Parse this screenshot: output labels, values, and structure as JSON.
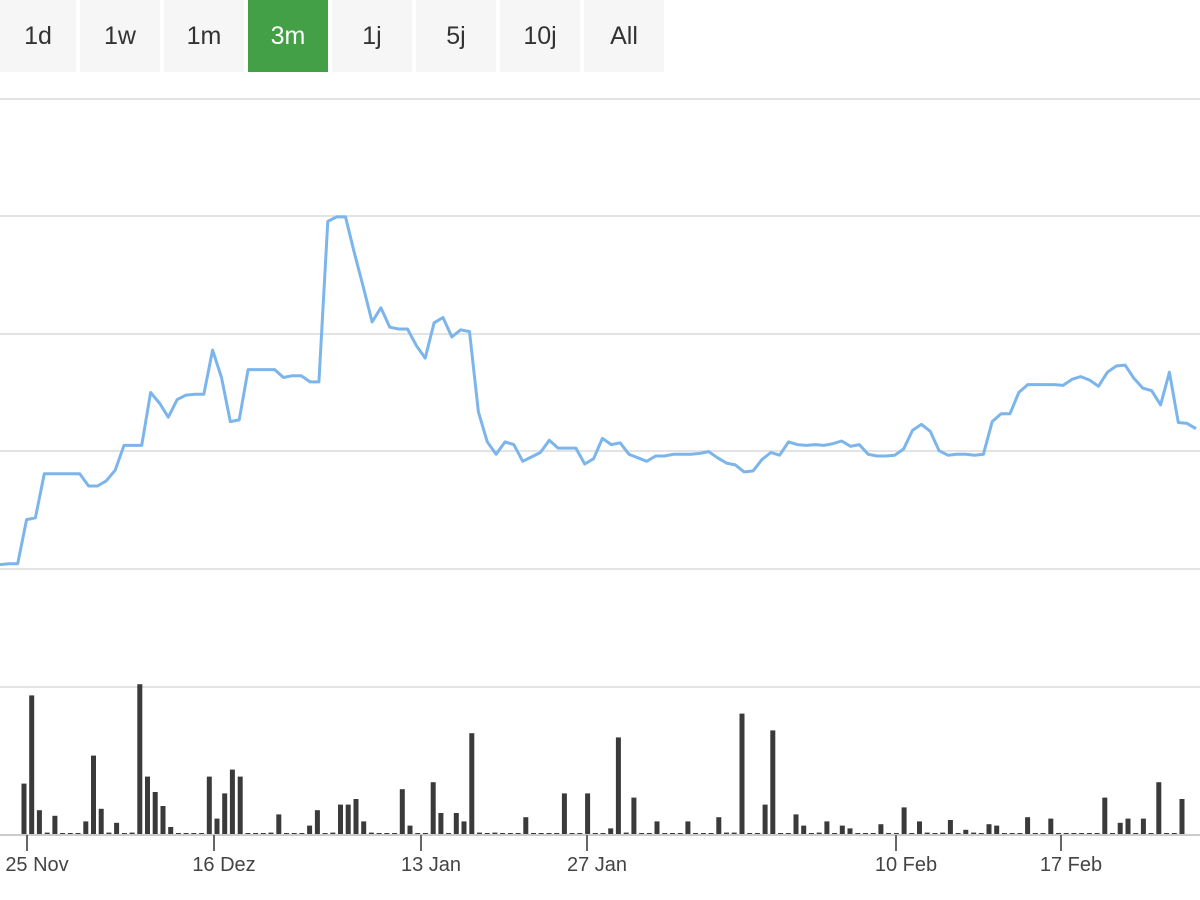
{
  "range_selector": {
    "buttons": [
      {
        "label": "1d"
      },
      {
        "label": "1w"
      },
      {
        "label": "1m"
      },
      {
        "label": "3m"
      },
      {
        "label": "1j"
      },
      {
        "label": "5j"
      },
      {
        "label": "10j"
      },
      {
        "label": "All"
      }
    ],
    "active": "3m"
  },
  "colors": {
    "line": "#7cb5ec",
    "volume": "#3a3a3a",
    "active_button": "#43a047",
    "button_bg": "#f6f6f6",
    "grid": "#e3e3e3"
  },
  "chart_data": {
    "type": "line",
    "grid": true,
    "x_ticks": [
      "25 Nov",
      "16 Dez",
      "13 Jan",
      "27 Jan",
      "10 Feb",
      "17 Feb"
    ],
    "ylim": [
      0,
      5
    ],
    "series": [
      {
        "values": [
          1.05,
          1.06,
          1.06,
          1.56,
          1.58,
          2.08,
          2.08,
          2.08,
          2.08,
          2.08,
          1.94,
          1.94,
          2.0,
          2.12,
          2.4,
          2.4,
          2.4,
          3.0,
          2.88,
          2.72,
          2.92,
          2.97,
          2.98,
          2.98,
          3.48,
          3.17,
          2.67,
          2.69,
          3.26,
          3.26,
          3.26,
          3.26,
          3.17,
          3.19,
          3.19,
          3.12,
          3.12,
          4.94,
          4.99,
          4.99,
          4.58,
          4.2,
          3.8,
          3.96,
          3.74,
          3.72,
          3.72,
          3.53,
          3.39,
          3.79,
          3.85,
          3.63,
          3.71,
          3.69,
          2.78,
          2.44,
          2.3,
          2.44,
          2.41,
          2.22,
          2.27,
          2.32,
          2.46,
          2.37,
          2.37,
          2.37,
          2.19,
          2.25,
          2.48,
          2.41,
          2.43,
          2.3,
          2.26,
          2.22,
          2.28,
          2.28,
          2.3,
          2.3,
          2.3,
          2.31,
          2.33,
          2.26,
          2.2,
          2.18,
          2.1,
          2.11,
          2.24,
          2.32,
          2.29,
          2.44,
          2.41,
          2.4,
          2.41,
          2.4,
          2.42,
          2.45,
          2.39,
          2.41,
          2.3,
          2.28,
          2.28,
          2.29,
          2.36,
          2.57,
          2.64,
          2.56,
          2.34,
          2.29,
          2.3,
          2.3,
          2.29,
          2.3,
          2.67,
          2.76,
          2.76,
          3.0,
          3.09,
          3.09,
          3.09,
          3.09,
          3.08,
          3.15,
          3.18,
          3.14,
          3.07,
          3.23,
          3.3,
          3.31,
          3.16,
          3.05,
          3.02,
          2.86,
          3.23,
          2.66,
          2.65,
          2.59
        ]
      }
    ],
    "volume": {
      "values": [
        0.36,
        0.99,
        0.17,
        0.01,
        0.13,
        0.0,
        0.0,
        0.0,
        0.09,
        0.56,
        0.18,
        0.01,
        0.08,
        0.0,
        0.01,
        1.07,
        0.41,
        0.3,
        0.2,
        0.05,
        0.0,
        0.0,
        0.0,
        0.0,
        0.41,
        0.11,
        0.29,
        0.46,
        0.41,
        0.0,
        0.0,
        0.0,
        0.01,
        0.14,
        0.0,
        0.0,
        0.0,
        0.06,
        0.17,
        0.0,
        0.01,
        0.21,
        0.21,
        0.25,
        0.09,
        0.01,
        0.0,
        0.0,
        0.0,
        0.32,
        0.06,
        0.0,
        0.0,
        0.37,
        0.15,
        0.0,
        0.15,
        0.09,
        0.72,
        0.01,
        0.0,
        0.01,
        0.0,
        0.0,
        0.0,
        0.12,
        0.0,
        0.0,
        0.0,
        0.0,
        0.29,
        0.0,
        0.0,
        0.29,
        0.0,
        0.0,
        0.04,
        0.69,
        0.01,
        0.26,
        0.0,
        0.0,
        0.09,
        0.0,
        0.0,
        0.0,
        0.09,
        0.0,
        0.0,
        0.0,
        0.12,
        0.01,
        0.01,
        0.86,
        0.0,
        0.0,
        0.21,
        0.74,
        0.0,
        0.0,
        0.14,
        0.06,
        0.0,
        0.01,
        0.09,
        0.0,
        0.06,
        0.04,
        0.0,
        0.0,
        0.0,
        0.07,
        0.0,
        0.0,
        0.19,
        0.0,
        0.09,
        0.01,
        0.0,
        0.01,
        0.1,
        0.0,
        0.03,
        0.01,
        0.0,
        0.07,
        0.06,
        0.0,
        0.0,
        0.0,
        0.12,
        0.0,
        0.0,
        0.11,
        0.0,
        0.0,
        0.0,
        0.0,
        0.0,
        0.0,
        0.26,
        0.0,
        0.08,
        0.11,
        0.0,
        0.11,
        0.0,
        0.37,
        0.0,
        0.0,
        0.25
      ]
    }
  }
}
